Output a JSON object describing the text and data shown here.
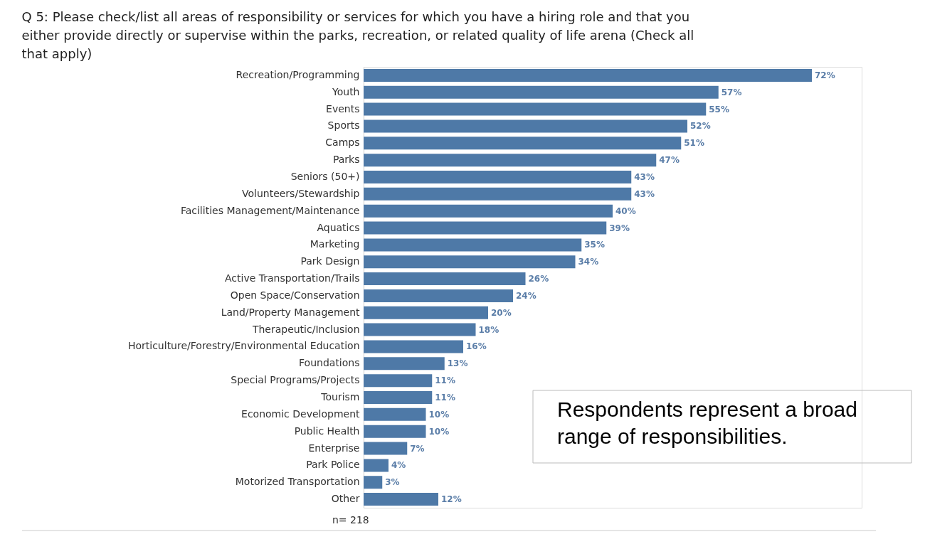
{
  "chart_data": {
    "type": "bar",
    "orientation": "horizontal",
    "title": "Q 5: Please check/list all areas of responsibility or services for which you have a hiring role and that you either provide directly or supervise within the parks, recreation, or related quality of life arena  (Check all that apply)",
    "categories": [
      "Recreation/Programming",
      "Youth",
      "Events",
      "Sports",
      "Camps",
      "Parks",
      "Seniors (50+)",
      "Volunteers/Stewardship",
      "Facilities Management/Maintenance",
      "Aquatics",
      "Marketing",
      "Park Design",
      "Active Transportation/Trails",
      "Open Space/Conservation",
      "Land/Property Management",
      "Therapeutic/Inclusion",
      "Horticulture/Forestry/Environmental Education",
      "Foundations",
      "Special Programs/Projects",
      "Tourism",
      "Economic Development",
      "Public Health",
      "Enterprise",
      "Park Police",
      "Motorized Transportation",
      "Other"
    ],
    "values": [
      72,
      57,
      55,
      52,
      51,
      47,
      43,
      43,
      40,
      39,
      35,
      34,
      26,
      24,
      20,
      18,
      16,
      13,
      11,
      11,
      10,
      10,
      7,
      4,
      3,
      12
    ],
    "value_labels": [
      "72%",
      "57%",
      "55%",
      "52%",
      "51%",
      "47%",
      "43%",
      "43%",
      "40%",
      "39%",
      "35%",
      "34%",
      "26%",
      "24%",
      "20%",
      "18%",
      "16%",
      "13%",
      "11%",
      "11%",
      "10%",
      "10%",
      "7%",
      "4%",
      "3%",
      "12%"
    ],
    "color": "#4e79a7",
    "annotations": [
      "Respondents represent a broad range of responsibilities.",
      {
        "text": "n= 218"
      }
    ],
    "grid": false
  }
}
